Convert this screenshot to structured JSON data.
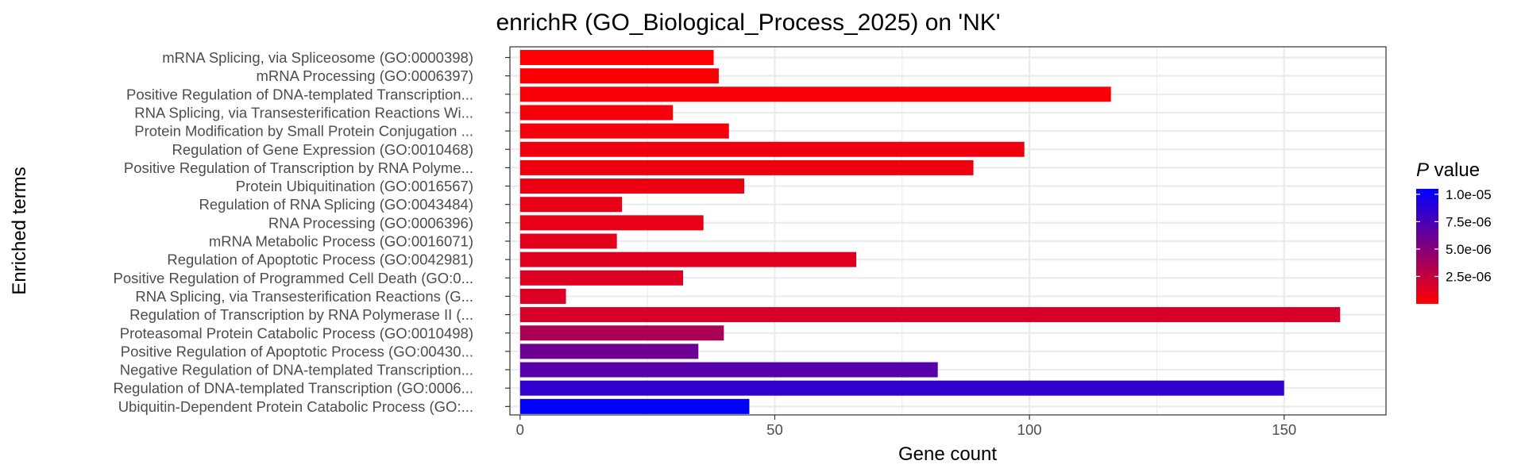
{
  "chart_data": {
    "type": "bar",
    "orientation": "horizontal",
    "title": "enrichR (GO_Biological_Process_2025) on 'NK'",
    "xlabel": "Gene count",
    "ylabel": "Enriched terms",
    "xlim": [
      -2,
      170
    ],
    "xticks": [
      0,
      50,
      100,
      150
    ],
    "xtick_labels": [
      "0",
      "50",
      "100",
      "150"
    ],
    "grid": true,
    "legend": {
      "title_italic": "P",
      "title_rest": " value",
      "placement": "right",
      "type": "colorbar",
      "min": 0,
      "max": 1.05e-05,
      "low_color": "#FF0000",
      "high_color": "#0000FF",
      "ticks": [
        1e-05,
        7.5e-06,
        5e-06,
        2.5e-06
      ],
      "tick_labels": [
        "1.0e-05",
        "7.5e-06",
        "5.0e-06",
        "2.5e-06"
      ]
    },
    "categories": [
      "mRNA Splicing, via Spliceosome (GO:0000398)",
      "mRNA Processing (GO:0006397)",
      "Positive Regulation of DNA-templated Transcription...",
      "RNA Splicing, via Transesterification Reactions Wi...",
      "Protein Modification by Small Protein Conjugation ...",
      "Regulation of Gene Expression (GO:0010468)",
      "Positive Regulation of Transcription by RNA Polyme...",
      "Protein Ubiquitination (GO:0016567)",
      "Regulation of RNA Splicing (GO:0043484)",
      "RNA Processing (GO:0006396)",
      "mRNA Metabolic Process (GO:0016071)",
      "Regulation of Apoptotic Process (GO:0042981)",
      "Positive Regulation of Programmed Cell Death (GO:0...",
      "RNA Splicing, via Transesterification Reactions (G...",
      "Regulation of Transcription by RNA Polymerase II (...",
      "Proteasomal Protein Catabolic Process (GO:0010498)",
      "Positive Regulation of Apoptotic Process (GO:00430...",
      "Negative Regulation of DNA-templated Transcription...",
      "Regulation of DNA-templated Transcription (GO:0006...",
      "Ubiquitin-Dependent Protein Catabolic Process (GO:..."
    ],
    "values": [
      38,
      39,
      116,
      30,
      41,
      99,
      89,
      44,
      20,
      36,
      19,
      66,
      32,
      9,
      161,
      40,
      35,
      82,
      150,
      45
    ],
    "p_values": [
      1e-07,
      2e-07,
      3e-07,
      4e-07,
      5e-07,
      6e-07,
      7e-07,
      8e-07,
      9e-07,
      1e-06,
      1.1e-06,
      1.3e-06,
      1.4e-06,
      1.5e-06,
      1.7e-06,
      3.5e-06,
      6e-06,
      7e-06,
      8.5e-06,
      1.05e-05
    ]
  }
}
